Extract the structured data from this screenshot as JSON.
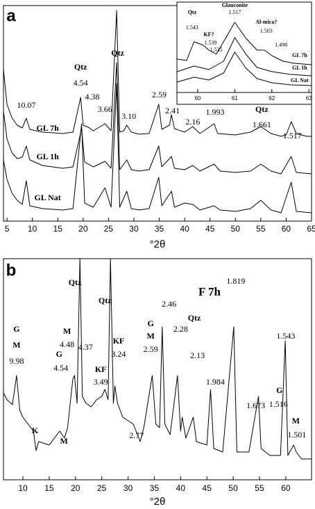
{
  "chart_data": [
    {
      "type": "line",
      "panel": "a",
      "xlabel": "°2θ",
      "xlim": [
        4.3,
        65
      ],
      "ylim": [
        0,
        310
      ],
      "xticks": [
        5,
        10,
        15,
        20,
        25,
        30,
        35,
        40,
        45,
        50,
        55,
        60,
        65
      ],
      "series": [
        {
          "color": "#000000",
          "x": [
            4.3,
            5,
            6,
            7,
            8,
            8.8,
            9.5,
            12,
            16,
            18,
            19.5,
            20,
            21,
            22,
            24.3,
            25.5,
            26.6,
            27.2,
            28,
            28.6,
            29.5,
            31,
            33,
            34.9,
            35.5,
            37,
            37.4,
            38,
            40,
            41.6,
            43,
            45.8,
            46.5,
            50,
            53,
            55,
            57,
            59,
            60,
            61,
            62,
            64,
            65
          ],
          "values": [
            218,
            168,
            148,
            138,
            134,
            148,
            132,
            128,
            126,
            128,
            178,
            138,
            135,
            130,
            140,
            130,
            303,
            128,
            130,
            138,
            128,
            125,
            126,
            168,
            132,
            138,
            153,
            133,
            128,
            136,
            126,
            140,
            126,
            124,
            128,
            136,
            126,
            122,
            124,
            143,
            126,
            122,
            122
          ]
        },
        {
          "color": "#000000",
          "x": [
            4.3,
            5,
            6,
            7,
            8,
            8.8,
            9.5,
            12,
            16,
            18,
            19.7,
            20.3,
            22,
            24.3,
            25.5,
            26.6,
            27.2,
            28.6,
            29.5,
            31,
            33,
            34.9,
            35.5,
            37.4,
            38,
            40,
            41.6,
            43,
            45.8,
            47,
            50,
            53,
            55,
            57,
            59,
            61,
            62,
            65
          ],
          "values": [
            158,
            118,
            98,
            90,
            92,
            108,
            88,
            80,
            76,
            78,
            133,
            85,
            78,
            86,
            76,
            228,
            74,
            88,
            74,
            72,
            74,
            108,
            78,
            93,
            76,
            74,
            80,
            72,
            82,
            72,
            70,
            72,
            82,
            72,
            68,
            93,
            70,
            68
          ]
        },
        {
          "color": "#000000",
          "x": [
            4.3,
            5,
            6,
            7,
            8,
            8.8,
            9.5,
            12,
            16,
            18,
            19.7,
            20.3,
            22,
            24.3,
            25.5,
            26.6,
            27.2,
            28.6,
            29.5,
            31,
            33,
            34.9,
            35.5,
            37.4,
            38,
            40,
            41.6,
            43,
            45.8,
            47,
            50,
            53,
            55,
            57,
            59,
            61,
            62,
            65
          ],
          "values": [
            88,
            60,
            40,
            30,
            24,
            58,
            22,
            18,
            16,
            18,
            140,
            26,
            20,
            48,
            20,
            198,
            20,
            43,
            18,
            16,
            18,
            63,
            22,
            43,
            20,
            26,
            24,
            16,
            22,
            16,
            14,
            18,
            30,
            16,
            12,
            56,
            14,
            12
          ]
        }
      ],
      "annotations": [
        {
          "text": "10.07",
          "x": 8.8,
          "y": 166
        },
        {
          "text": "Qtz",
          "x": 19.5,
          "y": 221,
          "bold": true
        },
        {
          "text": "4.54",
          "x": 19.5,
          "y": 198
        },
        {
          "text": "4.38",
          "x": 21.8,
          "y": 178
        },
        {
          "text": "3.66",
          "x": 24.3,
          "y": 160
        },
        {
          "text": "Qtz",
          "x": 26.8,
          "y": 241,
          "bold": true
        },
        {
          "text": "3.10",
          "x": 29,
          "y": 150
        },
        {
          "text": "2.59",
          "x": 35,
          "y": 181
        },
        {
          "text": "2.41",
          "x": 37.6,
          "y": 158
        },
        {
          "text": "2.16",
          "x": 41.6,
          "y": 142
        },
        {
          "text": "1.993",
          "x": 46,
          "y": 156
        },
        {
          "text": "Qtz",
          "x": 55.2,
          "y": 160,
          "bold": true
        },
        {
          "text": "1.661",
          "x": 55.2,
          "y": 138
        },
        {
          "text": "1.517",
          "x": 61.2,
          "y": 122
        },
        {
          "text": "GL 7h",
          "x": 13,
          "y": 133,
          "bold": true
        },
        {
          "text": "GL 1h",
          "x": 13,
          "y": 92,
          "bold": true
        },
        {
          "text": "GL Nat",
          "x": 13,
          "y": 33,
          "bold": true
        }
      ]
    },
    {
      "type": "line",
      "inset": true,
      "xlim": [
        59.44,
        63.07
      ],
      "ylim": [
        0,
        130
      ],
      "xticks": [
        60,
        61,
        62,
        63
      ],
      "series": [
        {
          "color": "#000000",
          "x": [
            59.45,
            59.7,
            59.9,
            60.15,
            60.3,
            60.5,
            60.7,
            61,
            61.3,
            61.6,
            61.8,
            62,
            62.3,
            62.6,
            63.07
          ],
          "values": [
            48,
            46,
            73,
            68,
            61,
            55,
            73,
            101,
            78,
            61,
            61,
            53,
            45,
            42,
            40
          ]
        },
        {
          "color": "#000000",
          "x": [
            59.45,
            59.9,
            60.3,
            60.7,
            61,
            61.3,
            61.6,
            62,
            62.5,
            63.07
          ],
          "values": [
            30,
            38,
            33,
            45,
            79,
            55,
            36,
            30,
            26,
            24
          ]
        },
        {
          "color": "#000000",
          "x": [
            59.45,
            59.9,
            60.3,
            60.7,
            61,
            61.3,
            61.6,
            62,
            62.5,
            63.07
          ],
          "values": [
            15,
            22,
            18,
            28,
            58,
            35,
            20,
            14,
            11,
            10
          ]
        }
      ],
      "annotations": [
        {
          "text": "Qtz",
          "x": 59.85,
          "y": 115,
          "bold": true
        },
        {
          "text": "1.543",
          "x": 59.85,
          "y": 93
        },
        {
          "text": "KF?",
          "x": 60.3,
          "y": 83,
          "bold": true
        },
        {
          "text": "1.539",
          "x": 60.35,
          "y": 71
        },
        {
          "text": "1.535",
          "x": 60.5,
          "y": 61
        },
        {
          "text": "Glauconite",
          "x": 61,
          "y": 125,
          "bold": true
        },
        {
          "text": "1.517",
          "x": 61,
          "y": 115
        },
        {
          "text": "Al-mica?",
          "x": 61.85,
          "y": 101,
          "bold": true
        },
        {
          "text": "1.503",
          "x": 61.85,
          "y": 88
        },
        {
          "text": "1.498",
          "x": 62.25,
          "y": 68
        },
        {
          "text": "GL 7h",
          "x": 62.75,
          "y": 53,
          "bold": true
        },
        {
          "text": "GL 1h",
          "x": 62.75,
          "y": 35,
          "bold": true
        },
        {
          "text": "GL Nat",
          "x": 62.75,
          "y": 17,
          "bold": true
        }
      ]
    },
    {
      "type": "line",
      "panel": "b",
      "xlabel": "°2θ",
      "xlim": [
        6.3,
        64.9
      ],
      "ylim": [
        0,
        318
      ],
      "xticks": [
        10,
        15,
        20,
        25,
        30,
        35,
        40,
        45,
        50,
        55,
        60
      ],
      "series": [
        {
          "color": "#000000",
          "x": [
            6.3,
            7,
            8,
            8.8,
            9.4,
            10,
            11,
            12,
            12.5,
            13,
            15,
            17,
            17.9,
            18.5,
            19.5,
            19.8,
            20.3,
            20.85,
            21.3,
            22,
            23,
            24,
            25,
            25.6,
            26.2,
            26.65,
            27.2,
            27.5,
            28,
            29,
            30,
            31,
            32.3,
            33,
            34.6,
            35.3,
            36,
            36.5,
            37,
            38,
            39.4,
            40,
            40.3,
            41,
            42.4,
            43,
            45,
            45.7,
            46.3,
            48,
            50.1,
            50.7,
            53,
            54.8,
            55.3,
            57,
            59,
            59.9,
            60.4,
            61.5,
            62,
            63,
            64.9
          ],
          "values": [
            125,
            115,
            108,
            150,
            100,
            90,
            80,
            70,
            42,
            55,
            50,
            70,
            60,
            75,
            145,
            150,
            110,
            318,
            120,
            110,
            105,
            115,
            120,
            130,
            115,
            318,
            110,
            135,
            110,
            90,
            85,
            80,
            55,
            75,
            150,
            80,
            75,
            220,
            80,
            65,
            150,
            70,
            90,
            60,
            90,
            55,
            50,
            130,
            45,
            40,
            220,
            40,
            40,
            120,
            45,
            35,
            35,
            200,
            35,
            50,
            40,
            30,
            30
          ]
        }
      ],
      "annotations": [
        {
          "text": "G",
          "x": 8.8,
          "y": 216,
          "bold": true
        },
        {
          "text": "M",
          "x": 8.8,
          "y": 193,
          "bold": true
        },
        {
          "text": "9.98",
          "x": 8.8,
          "y": 170
        },
        {
          "text": "K",
          "x": 12.3,
          "y": 70,
          "bold": true
        },
        {
          "text": "M",
          "x": 17.8,
          "y": 55,
          "bold": true
        },
        {
          "text": "M",
          "x": 18.4,
          "y": 213,
          "bold": true
        },
        {
          "text": "4.48",
          "x": 18.4,
          "y": 194
        },
        {
          "text": "G",
          "x": 16.9,
          "y": 180,
          "bold": true
        },
        {
          "text": "4.54",
          "x": 17.2,
          "y": 160
        },
        {
          "text": "4.37",
          "x": 21.9,
          "y": 190
        },
        {
          "text": "Qtz",
          "x": 19.9,
          "y": 283,
          "bold": true
        },
        {
          "text": "KF",
          "x": 24.8,
          "y": 158,
          "bold": true
        },
        {
          "text": "3.49",
          "x": 24.8,
          "y": 140
        },
        {
          "text": "KF",
          "x": 28.2,
          "y": 199,
          "bold": true
        },
        {
          "text": "3.24",
          "x": 28.2,
          "y": 180
        },
        {
          "text": "Qtz",
          "x": 25.6,
          "y": 257,
          "bold": true
        },
        {
          "text": "G",
          "x": 34.3,
          "y": 224,
          "bold": true
        },
        {
          "text": "M",
          "x": 34.3,
          "y": 206,
          "bold": true
        },
        {
          "text": "2.59",
          "x": 34.3,
          "y": 187
        },
        {
          "text": "2.46",
          "x": 37.8,
          "y": 252
        },
        {
          "text": "Qtz",
          "x": 42.6,
          "y": 232,
          "bold": true
        },
        {
          "text": "2.28",
          "x": 40,
          "y": 216
        },
        {
          "text": "2.13",
          "x": 43.2,
          "y": 178
        },
        {
          "text": "1.984",
          "x": 46.6,
          "y": 140
        },
        {
          "text": "1.819",
          "x": 50.5,
          "y": 285
        },
        {
          "text": "1.543",
          "x": 60,
          "y": 206
        },
        {
          "text": "G",
          "x": 58.8,
          "y": 128,
          "bold": true
        },
        {
          "text": "1.516",
          "x": 58.6,
          "y": 108
        },
        {
          "text": "1.673",
          "x": 54.3,
          "y": 106
        },
        {
          "text": "M",
          "x": 61.9,
          "y": 84,
          "bold": true
        },
        {
          "text": "1.501",
          "x": 62.1,
          "y": 64
        },
        {
          "text": "2.77",
          "x": 31.6,
          "y": 63
        },
        {
          "text": "F 7h",
          "x": 45.5,
          "y": 269,
          "bold": true,
          "large": true
        }
      ]
    }
  ]
}
